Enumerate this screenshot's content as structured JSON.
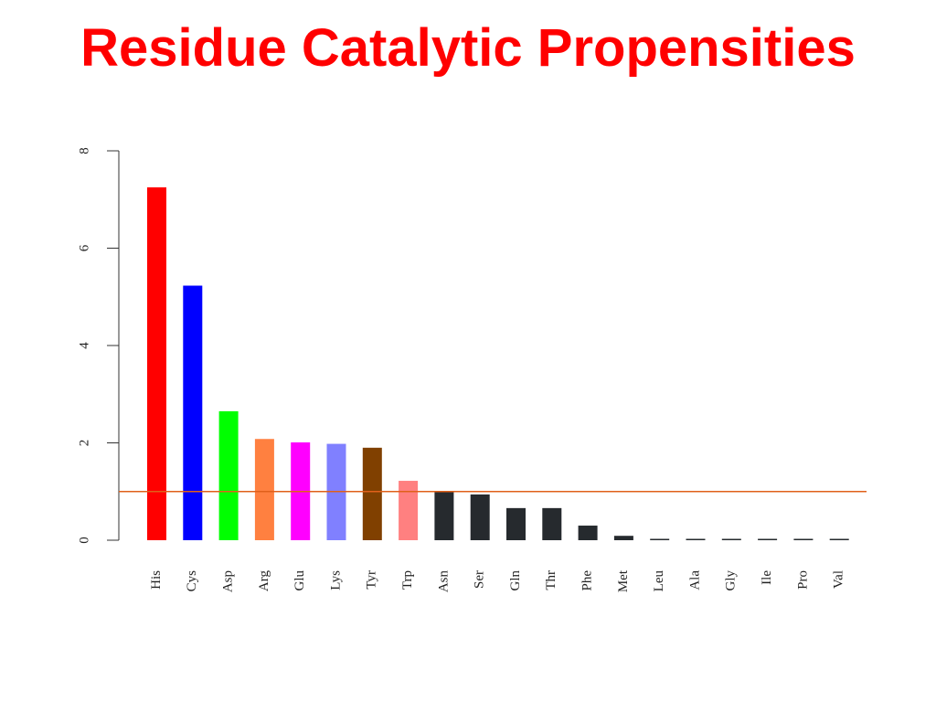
{
  "title": "Residue Catalytic Propensities",
  "chart_data": {
    "type": "bar",
    "title": "Residue Catalytic Propensities",
    "xlabel": "",
    "ylabel": "",
    "ylim": [
      0,
      8
    ],
    "yticks": [
      "0",
      "2",
      "4",
      "6",
      "8"
    ],
    "grid": false,
    "legend": "none",
    "reference_line": {
      "value": 1,
      "color": "#e0601a"
    },
    "categories": [
      "His",
      "Cys",
      "Asp",
      "Arg",
      "Glu",
      "Lys",
      "Tyr",
      "Trp",
      "Asn",
      "Ser",
      "Gln",
      "Thr",
      "Phe",
      "Met",
      "Leu",
      "Ala",
      "Gly",
      "Ile",
      "Pro",
      "Val"
    ],
    "values": [
      7.25,
      5.23,
      2.65,
      2.08,
      2.01,
      1.98,
      1.9,
      1.22,
      1.0,
      0.94,
      0.66,
      0.66,
      0.3,
      0.09,
      0.02,
      0.02,
      0.02,
      0.02,
      0.02,
      0.02
    ],
    "colors": [
      "#ff0000",
      "#0000ff",
      "#00ff00",
      "#ff8040",
      "#ff00ff",
      "#8080ff",
      "#804000",
      "#ff8080",
      "#262a2e",
      "#262a2e",
      "#262a2e",
      "#262a2e",
      "#262a2e",
      "#262a2e",
      "#262a2e",
      "#262a2e",
      "#262a2e",
      "#262a2e",
      "#262a2e",
      "#262a2e"
    ]
  }
}
